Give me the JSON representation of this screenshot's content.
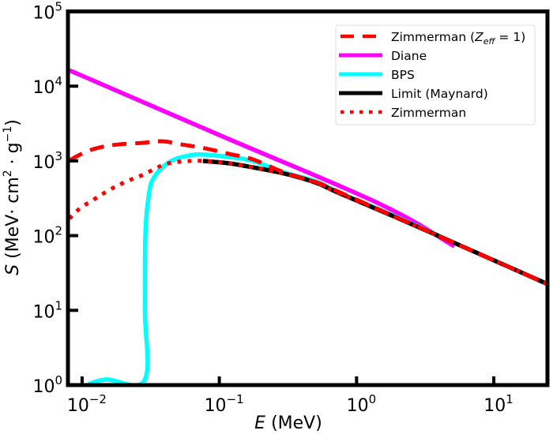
{
  "chart_data": {
    "type": "line",
    "title": "",
    "xlabel": "E (MeV)",
    "xlabel_italic": "E",
    "xlabel_rest": " (MeV)",
    "ylabel": "S (MeV· cm² · g⁻¹)",
    "ylabel_parts": {
      "var": "S",
      "pre": " (MeV· cm",
      "sup1": "2",
      "mid": " · g",
      "sup2": "−1",
      "post": ")"
    },
    "xscale": "log",
    "yscale": "log",
    "xlim": [
      0.0081,
      24.6
    ],
    "ylim": [
      1,
      100000
    ],
    "grid": false,
    "legend_position": "top-right",
    "x_ticks": [
      {
        "value": 0.01,
        "base": "10",
        "exp": "−2"
      },
      {
        "value": 0.1,
        "base": "10",
        "exp": "−1"
      },
      {
        "value": 1,
        "base": "10",
        "exp": "0"
      },
      {
        "value": 10,
        "base": "10",
        "exp": "1"
      }
    ],
    "y_ticks": [
      {
        "value": 1,
        "base": "10",
        "exp": "0"
      },
      {
        "value": 10,
        "base": "10",
        "exp": "1"
      },
      {
        "value": 100,
        "base": "10",
        "exp": "2"
      },
      {
        "value": 1000,
        "base": "10",
        "exp": "3"
      },
      {
        "value": 10000,
        "base": "10",
        "exp": "4"
      },
      {
        "value": 100000,
        "base": "10",
        "exp": "5"
      }
    ],
    "series": [
      {
        "name": "Zimmerman (Z_eff = 1)",
        "legend_main": "Zimmerman (",
        "legend_var": "Z",
        "legend_sub": "eff",
        "legend_tail": " = 1)",
        "color": "#ff0000",
        "style": "dashed",
        "x": [
          0.0081,
          0.0108,
          0.0141,
          0.0184,
          0.0274,
          0.0381,
          0.0531,
          0.079,
          0.118,
          0.175,
          0.298,
          0.506,
          0.753,
          1.905,
          5.15,
          24.6
        ],
        "y": [
          1020,
          1335,
          1545,
          1660,
          1740,
          1830,
          1660,
          1470,
          1240,
          1050,
          700,
          520,
          380,
          180,
          80,
          22.5
        ]
      },
      {
        "name": "Diane",
        "color": "#ff00ff",
        "style": "solid",
        "x": [
          0.0081,
          0.103,
          1.46,
          5.15
        ],
        "y": [
          16300,
          2170,
          268,
          72
        ]
      },
      {
        "name": "BPS",
        "color": "#00ffff",
        "style": "solid",
        "x": [
          0.0111,
          0.0151,
          0.0285,
          0.0287,
          0.0289,
          0.0305,
          0.0334,
          0.0436,
          0.0607,
          0.079,
          0.118,
          0.175,
          0.298,
          0.506,
          0.753,
          1.905,
          5.15
        ],
        "y": [
          1.03,
          1.19,
          1.16,
          10,
          96.6,
          326,
          599,
          973,
          1183,
          1213,
          1127,
          998,
          700,
          530,
          375,
          182,
          80
        ]
      },
      {
        "name": "Limit (Maynard)",
        "color": "#000000",
        "style": "solid",
        "x": [
          0.076,
          0.118,
          0.175,
          0.298,
          0.506,
          0.753,
          1.905,
          5.15,
          24.6
        ],
        "y": [
          998,
          927,
          820,
          676,
          510,
          368,
          178,
          80,
          22.5
        ]
      },
      {
        "name": "Zimmerman",
        "color": "#ff0000",
        "style": "dotted",
        "x": [
          0.0081,
          0.0095,
          0.0124,
          0.0161,
          0.021,
          0.0274,
          0.0408,
          0.0607,
          0.076,
          0.118,
          0.175,
          0.298,
          0.506,
          0.753,
          1.905,
          5.15,
          24.6
        ],
        "y": [
          169,
          226,
          311,
          416,
          530,
          644,
          906,
          998,
          998,
          927,
          820,
          676,
          510,
          368,
          178,
          80,
          22.5
        ]
      }
    ]
  }
}
